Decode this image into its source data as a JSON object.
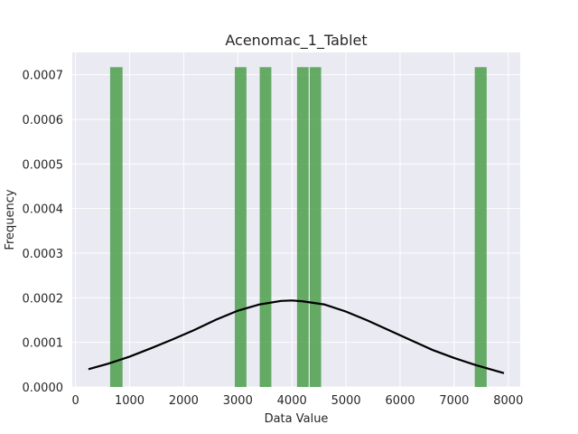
{
  "chart_data": {
    "type": "bar",
    "title": "Acenomac_1_Tablet",
    "xlabel": "Data Value",
    "ylabel": "Frequency",
    "xlim": [
      -60,
      8220
    ],
    "ylim": [
      0,
      0.00075
    ],
    "xticks": [
      0,
      1000,
      2000,
      3000,
      4000,
      5000,
      6000,
      7000,
      8000
    ],
    "yticks": [
      0.0,
      0.0001,
      0.0002,
      0.0003,
      0.0004,
      0.0005,
      0.0006,
      0.0007
    ],
    "ytick_labels": [
      "0.0000",
      "0.0001",
      "0.0002",
      "0.0003",
      "0.0004",
      "0.0005",
      "0.0006",
      "0.0007"
    ],
    "grid": true,
    "background_color": "#eaeaf2",
    "bar_color": "#4c9f4c",
    "curve_color": "#000000",
    "histogram": {
      "bins": [
        {
          "x0": 640,
          "x1": 870,
          "value": 0.000717
        },
        {
          "x0": 2945,
          "x1": 3160,
          "value": 0.000717
        },
        {
          "x0": 3405,
          "x1": 3620,
          "value": 0.000717
        },
        {
          "x0": 4095,
          "x1": 4310,
          "value": 0.000717
        },
        {
          "x0": 4330,
          "x1": 4540,
          "value": 0.000717
        },
        {
          "x0": 7380,
          "x1": 7600,
          "value": 0.000717
        }
      ]
    },
    "normal_curve": {
      "x": [
        240,
        600,
        1000,
        1400,
        1800,
        2200,
        2600,
        3000,
        3400,
        3800,
        4000,
        4200,
        4600,
        5000,
        5400,
        5800,
        6200,
        6600,
        7000,
        7400,
        7920
      ],
      "y": [
        4e-05,
        5.2e-05,
        6.8e-05,
        8.7e-05,
        0.000107,
        0.000128,
        0.000151,
        0.000171,
        0.000185,
        0.000193,
        0.000194,
        0.000192,
        0.000185,
        0.000169,
        0.000149,
        0.000127,
        0.000105,
        8.3e-05,
        6.5e-05,
        4.9e-05,
        3.1e-05
      ]
    }
  }
}
